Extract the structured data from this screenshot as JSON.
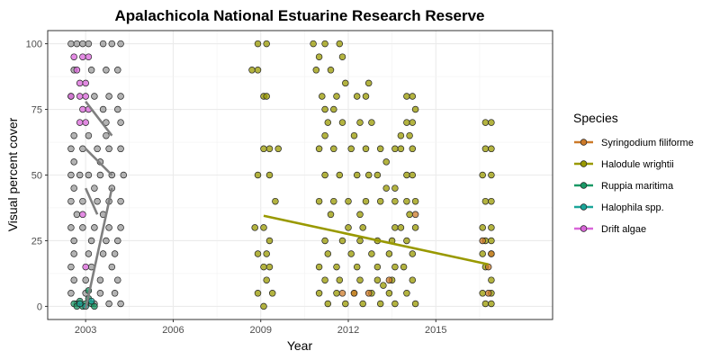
{
  "chart_data": {
    "type": "scatter",
    "title": "Apalachicola National Estuarine Research Reserve",
    "xlabel": "Year",
    "ylabel": "Visual percent cover",
    "xlim": [
      2001.7,
      2019.0
    ],
    "ylim": [
      -5,
      105
    ],
    "x_ticks": [
      2003,
      2006,
      2009,
      2012,
      2015
    ],
    "y_ticks": [
      0,
      25,
      50,
      75,
      100
    ],
    "grid": true,
    "legend": {
      "title": "Species",
      "position": "right",
      "entries": [
        "Syringodium filiforme",
        "Halodule wrightii",
        "Ruppia maritima",
        "Halophila spp.",
        "Drift algae"
      ]
    },
    "colors": {
      "Syringodium filiforme": "#cc7a29",
      "Halodule wrightii": "#999900",
      "Ruppia maritima": "#1a9966",
      "Halophila spp.": "#1aa699",
      "Drift algae": "#d966d9",
      "unspecified": "#999999"
    },
    "series": [
      {
        "name": "Halodule wrightii",
        "points": [
          [
            2008.9,
            100
          ],
          [
            2009.2,
            100
          ],
          [
            2008.7,
            90
          ],
          [
            2008.9,
            90
          ],
          [
            2009.1,
            80
          ],
          [
            2009.2,
            80
          ],
          [
            2009.1,
            60
          ],
          [
            2009.3,
            60
          ],
          [
            2009.6,
            60
          ],
          [
            2008.9,
            50
          ],
          [
            2009.3,
            50
          ],
          [
            2009.5,
            40
          ],
          [
            2008.8,
            30
          ],
          [
            2009.1,
            30
          ],
          [
            2009.3,
            25
          ],
          [
            2008.9,
            20
          ],
          [
            2009.2,
            20
          ],
          [
            2009.1,
            15
          ],
          [
            2009.3,
            15
          ],
          [
            2009.2,
            10
          ],
          [
            2008.9,
            5
          ],
          [
            2009.4,
            5
          ],
          [
            2009.1,
            0
          ],
          [
            2010.8,
            100
          ],
          [
            2011.2,
            100
          ],
          [
            2011.7,
            100
          ],
          [
            2011.0,
            95
          ],
          [
            2011.8,
            95
          ],
          [
            2010.9,
            90
          ],
          [
            2011.4,
            90
          ],
          [
            2011.9,
            85
          ],
          [
            2011.1,
            80
          ],
          [
            2011.6,
            80
          ],
          [
            2012.3,
            80
          ],
          [
            2012.6,
            80
          ],
          [
            2012.7,
            85
          ],
          [
            2011.2,
            75
          ],
          [
            2011.5,
            75
          ],
          [
            2011.3,
            70
          ],
          [
            2011.8,
            70
          ],
          [
            2012.4,
            70
          ],
          [
            2012.8,
            70
          ],
          [
            2011.2,
            65
          ],
          [
            2012.2,
            65
          ],
          [
            2011.0,
            60
          ],
          [
            2011.5,
            60
          ],
          [
            2012.1,
            60
          ],
          [
            2012.6,
            60
          ],
          [
            2013.1,
            60
          ],
          [
            2013.3,
            55
          ],
          [
            2013.6,
            60
          ],
          [
            2011.2,
            50
          ],
          [
            2011.7,
            50
          ],
          [
            2012.3,
            50
          ],
          [
            2012.7,
            50
          ],
          [
            2013.0,
            50
          ],
          [
            2013.3,
            45
          ],
          [
            2013.6,
            45
          ],
          [
            2011.0,
            40
          ],
          [
            2011.5,
            40
          ],
          [
            2012.0,
            40
          ],
          [
            2012.6,
            40
          ],
          [
            2013.1,
            40
          ],
          [
            2013.6,
            40
          ],
          [
            2011.4,
            35
          ],
          [
            2012.4,
            35
          ],
          [
            2012.0,
            30
          ],
          [
            2012.5,
            30
          ],
          [
            2013.6,
            30
          ],
          [
            2011.2,
            25
          ],
          [
            2011.8,
            25
          ],
          [
            2012.4,
            25
          ],
          [
            2013.0,
            25
          ],
          [
            2013.5,
            25
          ],
          [
            2011.3,
            20
          ],
          [
            2012.1,
            20
          ],
          [
            2012.8,
            20
          ],
          [
            2013.4,
            20
          ],
          [
            2011.0,
            15
          ],
          [
            2011.6,
            15
          ],
          [
            2012.3,
            15
          ],
          [
            2013.0,
            15
          ],
          [
            2013.6,
            15
          ],
          [
            2011.2,
            10
          ],
          [
            2011.7,
            10
          ],
          [
            2012.4,
            10
          ],
          [
            2013.0,
            10
          ],
          [
            2013.5,
            10
          ],
          [
            2011.0,
            5
          ],
          [
            2011.6,
            5
          ],
          [
            2012.2,
            5
          ],
          [
            2012.8,
            5
          ],
          [
            2013.2,
            8
          ],
          [
            2013.4,
            5
          ],
          [
            2011.3,
            1
          ],
          [
            2011.9,
            1
          ],
          [
            2012.5,
            1
          ],
          [
            2013.1,
            1
          ],
          [
            2013.6,
            1
          ],
          [
            2014.0,
            80
          ],
          [
            2014.2,
            80
          ],
          [
            2014.3,
            75
          ],
          [
            2014.0,
            70
          ],
          [
            2014.2,
            70
          ],
          [
            2013.8,
            65
          ],
          [
            2014.1,
            65
          ],
          [
            2013.8,
            60
          ],
          [
            2014.2,
            60
          ],
          [
            2014.0,
            50
          ],
          [
            2014.2,
            50
          ],
          [
            2014.0,
            40
          ],
          [
            2014.3,
            40
          ],
          [
            2014.1,
            35
          ],
          [
            2013.8,
            30
          ],
          [
            2014.3,
            30
          ],
          [
            2014.0,
            25
          ],
          [
            2014.2,
            20
          ],
          [
            2013.9,
            15
          ],
          [
            2014.2,
            10
          ],
          [
            2014.0,
            5
          ],
          [
            2014.3,
            1
          ],
          [
            2016.7,
            70
          ],
          [
            2016.9,
            70
          ],
          [
            2016.7,
            60
          ],
          [
            2016.9,
            60
          ],
          [
            2016.6,
            50
          ],
          [
            2016.9,
            50
          ],
          [
            2016.7,
            40
          ],
          [
            2016.9,
            40
          ],
          [
            2016.6,
            30
          ],
          [
            2016.9,
            30
          ],
          [
            2016.7,
            25
          ],
          [
            2016.9,
            25
          ],
          [
            2016.6,
            20
          ],
          [
            2016.9,
            20
          ],
          [
            2016.7,
            15
          ],
          [
            2016.9,
            10
          ],
          [
            2016.6,
            5
          ],
          [
            2016.9,
            5
          ],
          [
            2016.7,
            1
          ],
          [
            2016.9,
            1
          ]
        ],
        "trend": {
          "x": [
            2009.1,
            2016.8
          ],
          "y": [
            34.5,
            16.0
          ]
        }
      },
      {
        "name": "Syringodium filiforme",
        "points": [
          [
            2011.8,
            5
          ],
          [
            2012.2,
            5
          ],
          [
            2012.7,
            5
          ],
          [
            2013.4,
            10
          ],
          [
            2014.3,
            35
          ],
          [
            2016.8,
            15
          ],
          [
            2016.9,
            20
          ],
          [
            2016.6,
            25
          ],
          [
            2016.8,
            5
          ]
        ]
      },
      {
        "name": "Ruppia maritima",
        "points": [
          [
            2002.6,
            1
          ],
          [
            2002.8,
            2
          ],
          [
            2002.9,
            0
          ],
          [
            2003.0,
            1
          ],
          [
            2003.1,
            3
          ],
          [
            2003.2,
            1
          ],
          [
            2003.3,
            0
          ],
          [
            2002.7,
            0
          ],
          [
            2003.1,
            6
          ]
        ]
      },
      {
        "name": "Halophila spp.",
        "points": [
          [
            2002.8,
            1
          ],
          [
            2003.0,
            0
          ],
          [
            2003.2,
            2
          ]
        ]
      },
      {
        "name": "Drift algae",
        "points": [
          [
            2002.6,
            95
          ],
          [
            2002.9,
            95
          ],
          [
            2003.1,
            95
          ],
          [
            2002.7,
            90
          ],
          [
            2002.8,
            85
          ],
          [
            2003.0,
            85
          ],
          [
            2002.5,
            80
          ],
          [
            2002.8,
            80
          ],
          [
            2003.0,
            80
          ],
          [
            2002.9,
            75
          ],
          [
            2003.1,
            75
          ],
          [
            2002.8,
            70
          ],
          [
            2003.0,
            70
          ],
          [
            2002.9,
            35
          ],
          [
            2003.0,
            15
          ]
        ]
      },
      {
        "name": "",
        "points": [
          [
            2002.5,
            100
          ],
          [
            2002.7,
            100
          ],
          [
            2002.9,
            100
          ],
          [
            2003.1,
            100
          ],
          [
            2003.6,
            100
          ],
          [
            2003.9,
            100
          ],
          [
            2004.2,
            100
          ],
          [
            2002.6,
            90
          ],
          [
            2003.2,
            90
          ],
          [
            2003.7,
            90
          ],
          [
            2004.1,
            90
          ],
          [
            2002.5,
            80
          ],
          [
            2003.3,
            80
          ],
          [
            2003.8,
            80
          ],
          [
            2004.2,
            80
          ],
          [
            2003.6,
            75
          ],
          [
            2004.1,
            75
          ],
          [
            2003.7,
            70
          ],
          [
            2004.2,
            70
          ],
          [
            2002.6,
            65
          ],
          [
            2003.1,
            65
          ],
          [
            2003.7,
            65
          ],
          [
            2002.5,
            60
          ],
          [
            2002.9,
            60
          ],
          [
            2003.4,
            60
          ],
          [
            2003.8,
            60
          ],
          [
            2004.2,
            60
          ],
          [
            2002.6,
            55
          ],
          [
            2003.5,
            55
          ],
          [
            2002.5,
            50
          ],
          [
            2002.8,
            50
          ],
          [
            2003.1,
            50
          ],
          [
            2003.5,
            50
          ],
          [
            2003.9,
            50
          ],
          [
            2004.3,
            50
          ],
          [
            2002.6,
            45
          ],
          [
            2003.3,
            45
          ],
          [
            2003.9,
            45
          ],
          [
            2002.5,
            40
          ],
          [
            2002.9,
            40
          ],
          [
            2003.4,
            40
          ],
          [
            2003.8,
            40
          ],
          [
            2004.2,
            40
          ],
          [
            2002.7,
            35
          ],
          [
            2003.6,
            35
          ],
          [
            2002.5,
            30
          ],
          [
            2002.9,
            30
          ],
          [
            2003.3,
            30
          ],
          [
            2003.8,
            30
          ],
          [
            2004.2,
            30
          ],
          [
            2002.6,
            25
          ],
          [
            2003.2,
            25
          ],
          [
            2003.7,
            25
          ],
          [
            2004.1,
            25
          ],
          [
            2002.6,
            20
          ],
          [
            2003.1,
            20
          ],
          [
            2003.6,
            20
          ],
          [
            2004.0,
            20
          ],
          [
            2002.5,
            15
          ],
          [
            2003.2,
            15
          ],
          [
            2003.9,
            15
          ],
          [
            2002.6,
            10
          ],
          [
            2003.0,
            10
          ],
          [
            2003.5,
            10
          ],
          [
            2004.1,
            10
          ],
          [
            2002.5,
            5
          ],
          [
            2003.0,
            5
          ],
          [
            2003.5,
            5
          ],
          [
            2004.0,
            5
          ],
          [
            2002.7,
            1
          ],
          [
            2003.3,
            1
          ],
          [
            2003.8,
            1
          ],
          [
            2004.2,
            1
          ]
        ],
        "trend_lines": [
          {
            "x": [
              2003.0,
              2003.9
            ],
            "y": [
              78,
              65
            ]
          },
          {
            "x": [
              2003.0,
              2003.9
            ],
            "y": [
              60,
              50
            ]
          },
          {
            "x": [
              2003.0,
              2003.9
            ],
            "y": [
              -1,
              45
            ]
          },
          {
            "x": [
              2003.0,
              2003.4
            ],
            "y": [
              45,
              35
            ]
          }
        ]
      }
    ]
  }
}
